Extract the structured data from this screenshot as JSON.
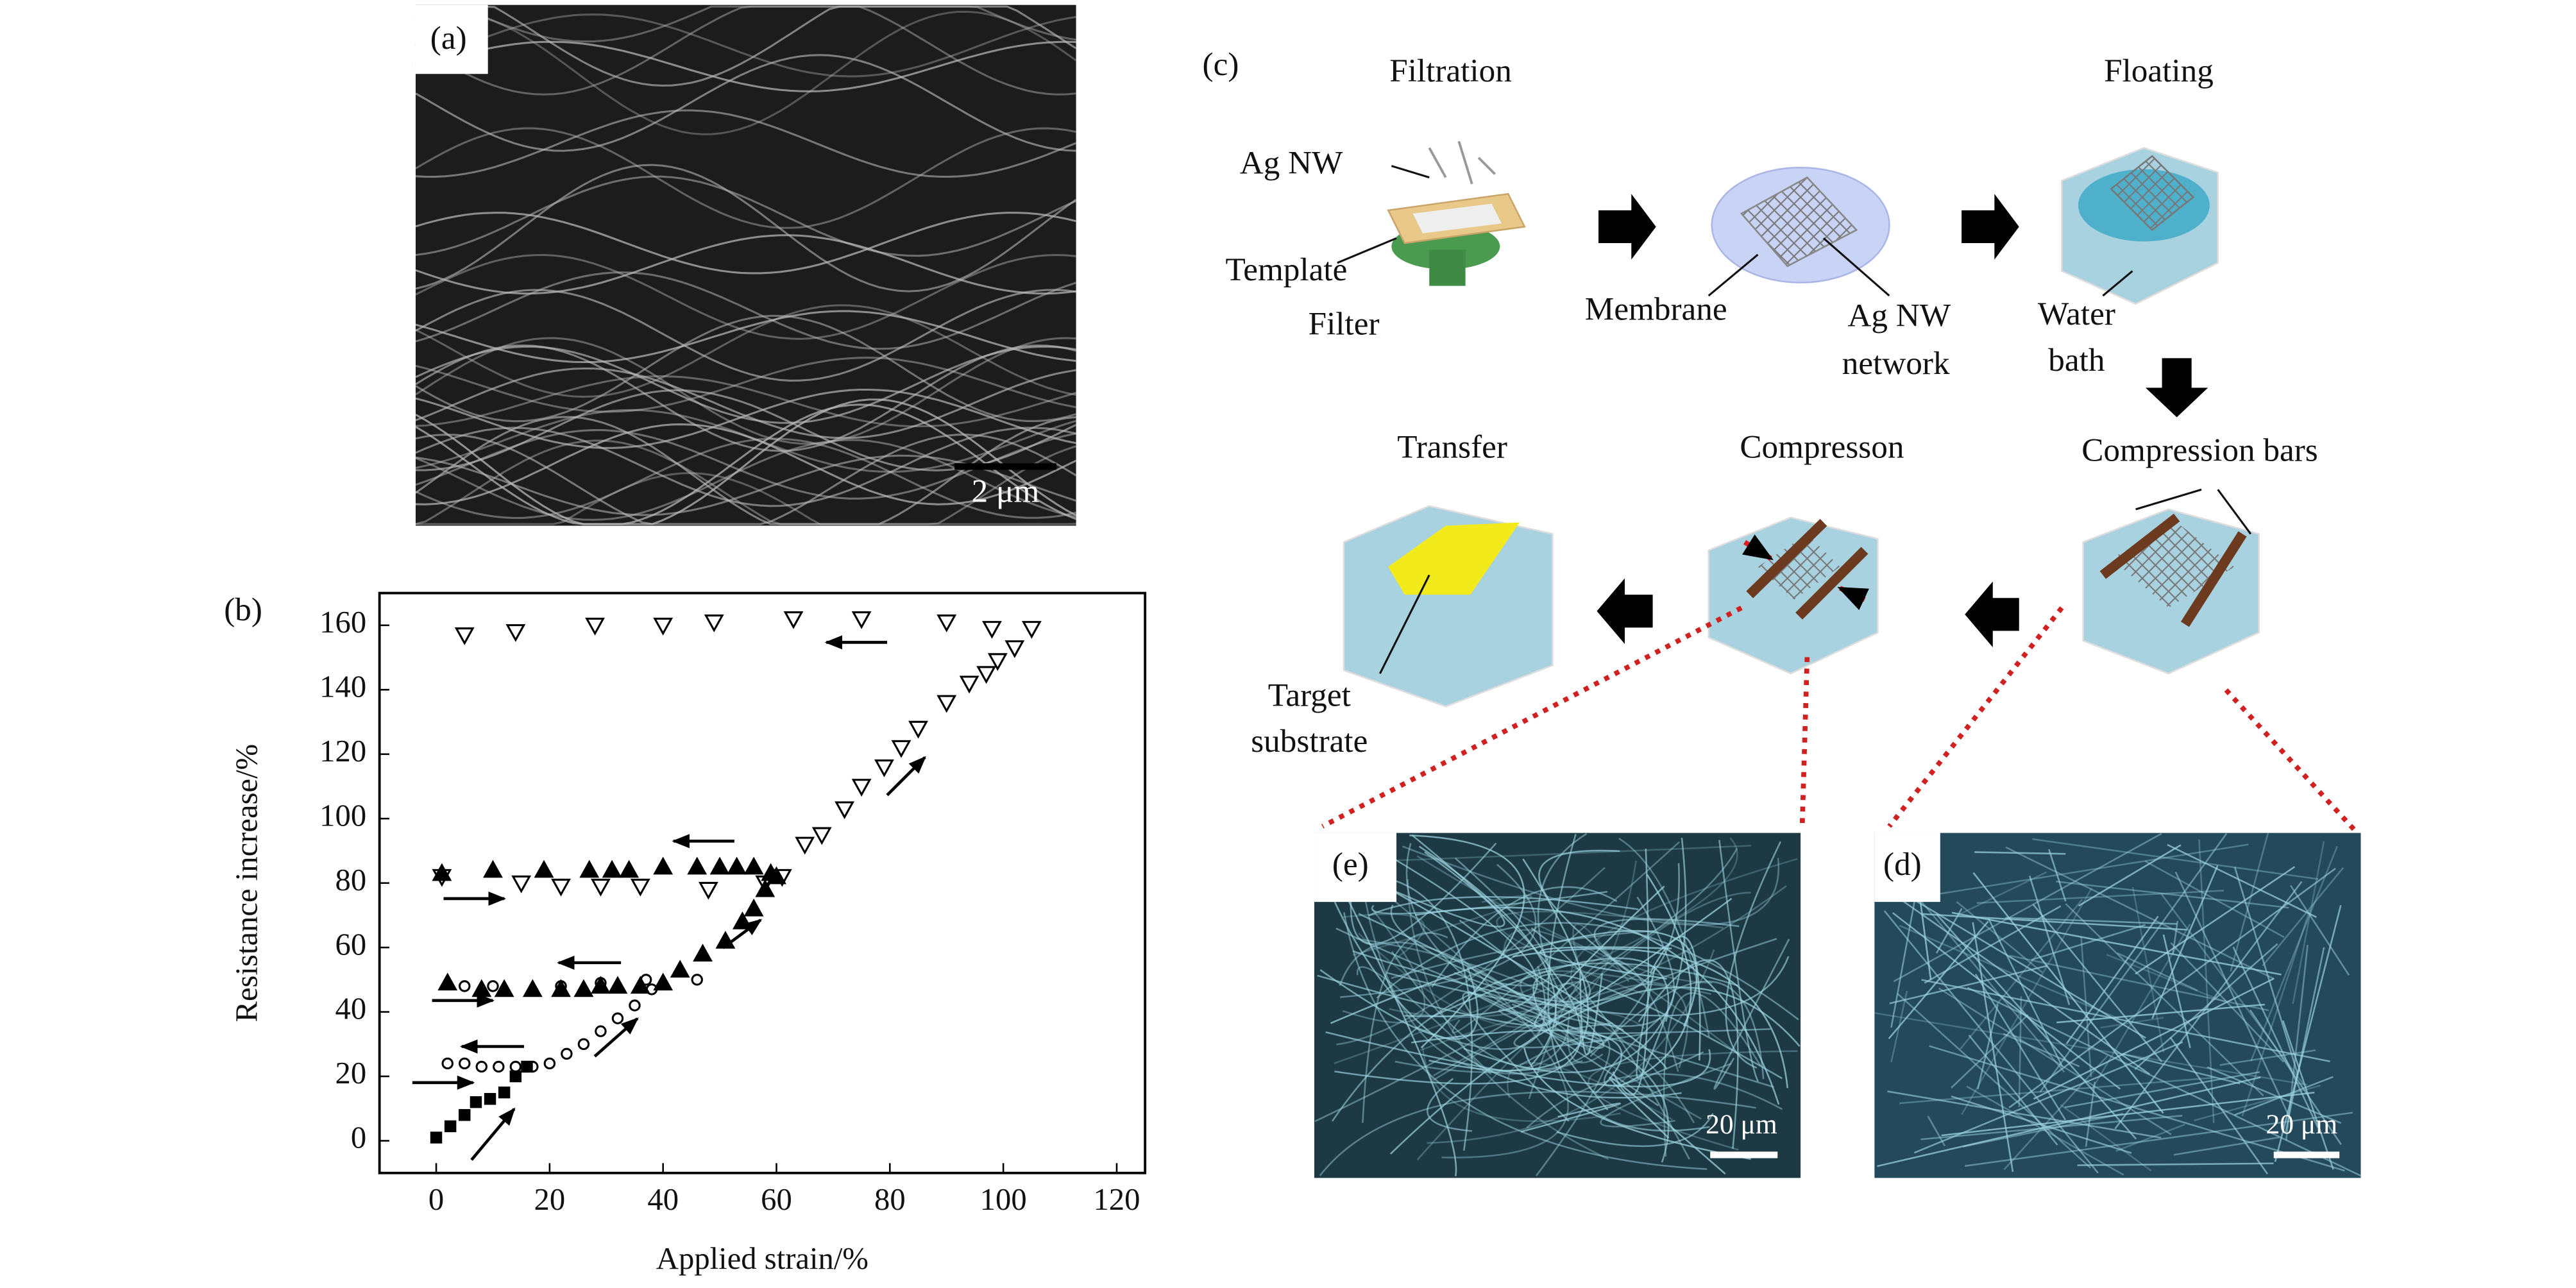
{
  "panel_labels": [
    "(a)",
    "(b)",
    "(c)",
    "(d)",
    "(e)"
  ],
  "sem_image": {
    "scale_bar": "2 μm"
  },
  "micrographs": {
    "d_scale_bar": "20 μm",
    "e_scale_bar": "20 μm"
  },
  "diagram": {
    "filtration": "Filtration",
    "floating": "Floating",
    "ag_nw": "Ag NW",
    "template": "Template",
    "filter": "Filter",
    "membrane": "Membrane",
    "ag_nw_network": [
      "Ag NW",
      "network"
    ],
    "water_bath": [
      "Water",
      "bath"
    ],
    "transfer": "Transfer",
    "compresson": "Compresson",
    "compression_bars": "Compression bars",
    "target_substrate": [
      "Target",
      "substrate"
    ]
  },
  "chart_data": {
    "type": "scatter",
    "x_label": "Applied strain/%",
    "y_label": "Resistance increase/%",
    "xlim": [
      -10,
      125
    ],
    "ylim": [
      -10,
      170
    ],
    "xticks": [
      0,
      20,
      40,
      60,
      80,
      100,
      120
    ],
    "yticks": [
      0,
      20,
      40,
      60,
      80,
      100,
      120,
      140,
      160
    ],
    "series": [
      {
        "marker": "square",
        "filled": true,
        "color": "#000000",
        "x": [
          0,
          2.5,
          5,
          7,
          9.5,
          12,
          14,
          16
        ],
        "values": [
          1,
          4.5,
          8,
          12,
          13,
          15,
          20,
          23
        ]
      },
      {
        "marker": "circle",
        "filled": false,
        "color": "#000000",
        "x": [
          2,
          5,
          8,
          11,
          14,
          17,
          20,
          23,
          26,
          29,
          32,
          35,
          38,
          5,
          10,
          22,
          29,
          37,
          46
        ],
        "values": [
          24,
          24,
          23,
          23,
          23,
          23,
          24,
          27,
          30,
          34,
          38,
          42,
          47,
          48,
          48,
          48,
          49,
          50,
          50
        ]
      },
      {
        "marker": "triangle-up",
        "filled": true,
        "color": "#000000",
        "x": [
          2,
          8,
          12,
          17,
          22,
          26,
          29,
          32,
          36,
          40,
          43,
          47,
          51,
          54,
          56,
          58,
          60,
          1,
          10,
          19,
          27,
          31,
          34,
          40,
          46,
          50,
          53,
          56,
          59
        ],
        "values": [
          49,
          47,
          47,
          47,
          47,
          47,
          48,
          48,
          48,
          49,
          53,
          58,
          62,
          68,
          72,
          78,
          82,
          83,
          84,
          84,
          84,
          84,
          84,
          85,
          85,
          85,
          85,
          85,
          83
        ]
      },
      {
        "marker": "triangle-down",
        "filled": false,
        "color": "#000000",
        "x": [
          1,
          15,
          22,
          29,
          36,
          48,
          58,
          61,
          65,
          68,
          72,
          75,
          79,
          82,
          85,
          90,
          94,
          97,
          99,
          102,
          105,
          5,
          14,
          28,
          40,
          49,
          63,
          75,
          90,
          98
        ],
        "values": [
          82,
          80,
          79,
          79,
          79,
          78,
          80,
          82,
          92,
          95,
          103,
          110,
          116,
          122,
          128,
          136,
          142,
          145,
          149,
          153,
          159,
          157,
          158,
          160,
          160,
          161,
          162,
          162,
          161,
          159
        ]
      }
    ]
  }
}
